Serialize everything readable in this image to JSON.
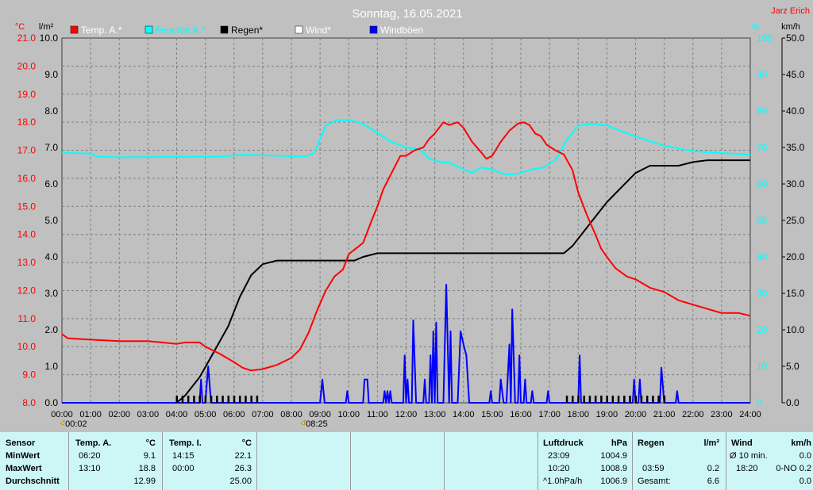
{
  "chart_data": {
    "type": "line",
    "title": "Sonntag, 16.05.2021",
    "author": "Jarz Erich",
    "axes": {
      "temp": {
        "unit": "°C",
        "range": [
          8.0,
          21.0
        ],
        "ticks": [
          "8.0",
          "9.0",
          "10.0",
          "11.0",
          "12.0",
          "13.0",
          "14.0",
          "15.0",
          "16.0",
          "17.0",
          "18.0",
          "19.0",
          "20.0",
          "21.0"
        ]
      },
      "rain": {
        "unit": "l/m²",
        "range": [
          0.0,
          10.0
        ],
        "ticks": [
          "0.0",
          "1.0",
          "2.0",
          "3.0",
          "4.0",
          "5.0",
          "6.0",
          "7.0",
          "8.0",
          "9.0",
          "10.0"
        ]
      },
      "humidity": {
        "unit": "%",
        "range": [
          0,
          100
        ],
        "ticks": [
          "0",
          "10",
          "20",
          "30",
          "40",
          "50",
          "60",
          "70",
          "80",
          "90",
          "100"
        ]
      },
      "wind": {
        "unit": "km/h",
        "range": [
          0.0,
          50.0
        ],
        "ticks": [
          "0.0",
          "5.0",
          "10.0",
          "15.0",
          "20.0",
          "25.0",
          "30.0",
          "35.0",
          "40.0",
          "45.0",
          "50.0"
        ]
      },
      "x": {
        "range": [
          0,
          24
        ],
        "ticks": [
          "00:00",
          "01:00",
          "02:00",
          "03:00",
          "04:00",
          "05:00",
          "06:00",
          "07:00",
          "08:00",
          "09:00",
          "10:00",
          "11:00",
          "12:00",
          "13:00",
          "14:00",
          "15:00",
          "16:00",
          "17:00",
          "18:00",
          "19:00",
          "20:00",
          "21:00",
          "22:00",
          "23:00",
          "24:00"
        ]
      }
    },
    "marker_labels": [
      {
        "x": 0.03,
        "label": "00:02"
      },
      {
        "x": 8.42,
        "label": "08:25"
      }
    ],
    "legend": [
      "Temp. A.*",
      "Feuchte A.*",
      "Regen*",
      "Wind*",
      "Windböen"
    ],
    "series": [
      {
        "name": "Temp. A.*",
        "color": "#ff0000",
        "axis": "temp",
        "points": [
          [
            0,
            10.45
          ],
          [
            0.2,
            10.3
          ],
          [
            1,
            10.25
          ],
          [
            2,
            10.2
          ],
          [
            3,
            10.2
          ],
          [
            3.5,
            10.15
          ],
          [
            4,
            10.1
          ],
          [
            4.3,
            10.15
          ],
          [
            4.8,
            10.15
          ],
          [
            5,
            10.0
          ],
          [
            5.5,
            9.75
          ],
          [
            6,
            9.45
          ],
          [
            6.3,
            9.25
          ],
          [
            6.6,
            9.15
          ],
          [
            7,
            9.2
          ],
          [
            7.5,
            9.35
          ],
          [
            8,
            9.6
          ],
          [
            8.3,
            9.9
          ],
          [
            8.6,
            10.5
          ],
          [
            8.9,
            11.3
          ],
          [
            9.2,
            12.0
          ],
          [
            9.5,
            12.5
          ],
          [
            9.8,
            12.75
          ],
          [
            10,
            13.3
          ],
          [
            10.5,
            13.7
          ],
          [
            10.8,
            14.5
          ],
          [
            11,
            15.0
          ],
          [
            11.2,
            15.6
          ],
          [
            11.5,
            16.2
          ],
          [
            11.8,
            16.8
          ],
          [
            12,
            16.8
          ],
          [
            12.3,
            17.0
          ],
          [
            12.6,
            17.1
          ],
          [
            12.8,
            17.4
          ],
          [
            13,
            17.6
          ],
          [
            13.3,
            18.0
          ],
          [
            13.5,
            17.9
          ],
          [
            13.8,
            18.0
          ],
          [
            14,
            17.8
          ],
          [
            14.3,
            17.3
          ],
          [
            14.6,
            16.95
          ],
          [
            14.8,
            16.7
          ],
          [
            15,
            16.8
          ],
          [
            15.3,
            17.3
          ],
          [
            15.6,
            17.7
          ],
          [
            15.9,
            17.95
          ],
          [
            16.1,
            18.0
          ],
          [
            16.3,
            17.9
          ],
          [
            16.5,
            17.6
          ],
          [
            16.7,
            17.5
          ],
          [
            16.9,
            17.2
          ],
          [
            17.2,
            17.0
          ],
          [
            17.5,
            16.85
          ],
          [
            17.8,
            16.3
          ],
          [
            18,
            15.5
          ],
          [
            18.3,
            14.7
          ],
          [
            18.6,
            14.0
          ],
          [
            18.8,
            13.5
          ],
          [
            19,
            13.2
          ],
          [
            19.3,
            12.8
          ],
          [
            19.7,
            12.5
          ],
          [
            20,
            12.4
          ],
          [
            20.5,
            12.1
          ],
          [
            21,
            11.95
          ],
          [
            21.5,
            11.65
          ],
          [
            22,
            11.5
          ],
          [
            22.5,
            11.35
          ],
          [
            23,
            11.2
          ],
          [
            23.6,
            11.2
          ],
          [
            24,
            11.1
          ]
        ]
      },
      {
        "name": "Feuchte A.*",
        "color": "#00ffff",
        "axis": "humidity",
        "points": [
          [
            0,
            68.5
          ],
          [
            1,
            68.3
          ],
          [
            1.2,
            67.5
          ],
          [
            2,
            67.3
          ],
          [
            5.5,
            67.5
          ],
          [
            6.3,
            68.0
          ],
          [
            8.5,
            67.5
          ],
          [
            8.8,
            68.5
          ],
          [
            9.2,
            76.0
          ],
          [
            9.6,
            77.5
          ],
          [
            10,
            77.5
          ],
          [
            10.3,
            77.0
          ],
          [
            10.6,
            76.0
          ],
          [
            11,
            74.0
          ],
          [
            11.5,
            71.5
          ],
          [
            12,
            70.0
          ],
          [
            12.5,
            69.5
          ],
          [
            12.8,
            67.0
          ],
          [
            13.2,
            66.0
          ],
          [
            13.5,
            65.8
          ],
          [
            14,
            64.0
          ],
          [
            14.3,
            63.0
          ],
          [
            14.6,
            64.5
          ],
          [
            15,
            64.0
          ],
          [
            15.3,
            63.0
          ],
          [
            15.6,
            62.5
          ],
          [
            16,
            63.0
          ],
          [
            16.4,
            64.0
          ],
          [
            16.8,
            64.5
          ],
          [
            17.2,
            66.5
          ],
          [
            17.6,
            72.0
          ],
          [
            18,
            76.0
          ],
          [
            18.5,
            76.5
          ],
          [
            19,
            76.0
          ],
          [
            19.5,
            74.5
          ],
          [
            20,
            73.0
          ],
          [
            21,
            70.5
          ],
          [
            22,
            69.0
          ],
          [
            23,
            68.5
          ],
          [
            24,
            68.0
          ]
        ]
      },
      {
        "name": "Regen*",
        "color": "#000000",
        "axis": "rain",
        "points": [
          [
            0,
            0.0
          ],
          [
            4.0,
            0.0
          ],
          [
            4.3,
            0.2
          ],
          [
            4.8,
            0.7
          ],
          [
            5.3,
            1.4
          ],
          [
            5.8,
            2.1
          ],
          [
            6.2,
            2.9
          ],
          [
            6.6,
            3.5
          ],
          [
            7.0,
            3.8
          ],
          [
            7.5,
            3.9
          ],
          [
            8,
            3.9
          ],
          [
            10.2,
            3.9
          ],
          [
            10.5,
            4.0
          ],
          [
            11,
            4.1
          ],
          [
            17.5,
            4.1
          ],
          [
            17.8,
            4.3
          ],
          [
            18.2,
            4.7
          ],
          [
            18.6,
            5.1
          ],
          [
            19.0,
            5.5
          ],
          [
            19.5,
            5.9
          ],
          [
            20,
            6.3
          ],
          [
            20.5,
            6.5
          ],
          [
            21.5,
            6.5
          ],
          [
            22,
            6.6
          ],
          [
            22.5,
            6.65
          ],
          [
            24,
            6.65
          ]
        ]
      },
      {
        "name": "Windböen",
        "color": "#0000ff",
        "axis": "wind",
        "points": [
          [
            0,
            0
          ],
          [
            4.8,
            0
          ],
          [
            4.85,
            3.2
          ],
          [
            4.9,
            0
          ],
          [
            5.0,
            0
          ],
          [
            5.1,
            5.0
          ],
          [
            5.2,
            0
          ],
          [
            9.0,
            0
          ],
          [
            9.08,
            3.2
          ],
          [
            9.16,
            0
          ],
          [
            9.9,
            0
          ],
          [
            9.95,
            1.6
          ],
          [
            10.0,
            0
          ],
          [
            10.5,
            0
          ],
          [
            10.55,
            3.2
          ],
          [
            10.65,
            3.2
          ],
          [
            10.7,
            0
          ],
          [
            11.2,
            0
          ],
          [
            11.25,
            1.6
          ],
          [
            11.3,
            0
          ],
          [
            11.35,
            1.6
          ],
          [
            11.4,
            0
          ],
          [
            11.45,
            1.6
          ],
          [
            11.5,
            0
          ],
          [
            11.9,
            0
          ],
          [
            11.95,
            6.5
          ],
          [
            12.0,
            0
          ],
          [
            12.05,
            3.2
          ],
          [
            12.1,
            0
          ],
          [
            12.2,
            0
          ],
          [
            12.25,
            11.3
          ],
          [
            12.35,
            0
          ],
          [
            12.6,
            0
          ],
          [
            12.65,
            3.2
          ],
          [
            12.7,
            0
          ],
          [
            12.8,
            0
          ],
          [
            12.85,
            6.5
          ],
          [
            12.9,
            0
          ],
          [
            12.95,
            9.8
          ],
          [
            13.0,
            0
          ],
          [
            13.05,
            11.0
          ],
          [
            13.1,
            0
          ],
          [
            13.3,
            0
          ],
          [
            13.4,
            16.2
          ],
          [
            13.5,
            0
          ],
          [
            13.55,
            9.8
          ],
          [
            13.6,
            0
          ],
          [
            13.8,
            0
          ],
          [
            13.9,
            9.8
          ],
          [
            14.0,
            8.0
          ],
          [
            14.1,
            6.5
          ],
          [
            14.2,
            0
          ],
          [
            14.9,
            0
          ],
          [
            14.95,
            1.6
          ],
          [
            15.0,
            0
          ],
          [
            15.25,
            0
          ],
          [
            15.3,
            3.2
          ],
          [
            15.4,
            0
          ],
          [
            15.5,
            0
          ],
          [
            15.6,
            8.0
          ],
          [
            15.65,
            0
          ],
          [
            15.7,
            12.8
          ],
          [
            15.8,
            0
          ],
          [
            15.9,
            0
          ],
          [
            15.95,
            6.5
          ],
          [
            16.0,
            0
          ],
          [
            16.1,
            0
          ],
          [
            16.15,
            3.2
          ],
          [
            16.2,
            0
          ],
          [
            16.35,
            0
          ],
          [
            16.4,
            1.6
          ],
          [
            16.45,
            0
          ],
          [
            16.9,
            0
          ],
          [
            16.95,
            1.6
          ],
          [
            17.0,
            0
          ],
          [
            18.0,
            0
          ],
          [
            18.05,
            6.5
          ],
          [
            18.1,
            0
          ],
          [
            19.9,
            0
          ],
          [
            19.95,
            3.2
          ],
          [
            20.0,
            0
          ],
          [
            20.1,
            0
          ],
          [
            20.15,
            3.2
          ],
          [
            20.2,
            0
          ],
          [
            20.85,
            0
          ],
          [
            20.9,
            4.8
          ],
          [
            21.0,
            0
          ],
          [
            21.4,
            0
          ],
          [
            21.45,
            1.6
          ],
          [
            21.5,
            0
          ],
          [
            24,
            0
          ]
        ]
      }
    ],
    "event_bars": {
      "color": "#000000",
      "times": [
        4.0,
        4.2,
        4.4,
        4.6,
        4.8,
        5.0,
        5.2,
        5.4,
        5.6,
        5.8,
        6.0,
        6.2,
        6.4,
        6.6,
        6.8,
        17.6,
        17.8,
        18.0,
        18.2,
        18.4,
        18.6,
        18.8,
        19.0,
        19.2,
        19.4,
        19.6,
        19.8,
        20.0,
        20.2,
        20.4,
        20.6,
        20.8,
        21.0
      ]
    }
  },
  "stats": {
    "sensor": {
      "header": "Sensor",
      "rows": [
        "MinWert",
        "MaxWert",
        "Durchschnitt"
      ]
    },
    "temp_a": {
      "header": "Temp. A.",
      "unit": "°C",
      "rows": [
        [
          "06:20",
          "9.1"
        ],
        [
          "13:10",
          "18.8"
        ],
        [
          "",
          "12.99"
        ]
      ]
    },
    "temp_i": {
      "header": "Temp. I.",
      "unit": "°C",
      "rows": [
        [
          "14:15",
          "22.1"
        ],
        [
          "00:00",
          "26.3"
        ],
        [
          "",
          "25.00"
        ]
      ]
    },
    "luftdruck": {
      "header": "Luftdruck",
      "unit": "hPa",
      "rows": [
        [
          "23:09",
          "1004.9"
        ],
        [
          "10:20",
          "1008.9"
        ],
        [
          "^1.0hPa/h",
          "1006.9"
        ]
      ]
    },
    "regen": {
      "header": "Regen",
      "unit": "l/m²",
      "rows": [
        [
          "",
          ""
        ],
        [
          "03:59",
          "0.2"
        ],
        [
          "Gesamt:",
          "6.6"
        ]
      ]
    },
    "wind": {
      "header": "Wind",
      "unit": "km/h",
      "rows": [
        [
          "Ø 10 min.",
          "0.0"
        ],
        [
          "18:20",
          "0-NO 0.2"
        ],
        [
          "",
          "0.0"
        ]
      ]
    }
  }
}
